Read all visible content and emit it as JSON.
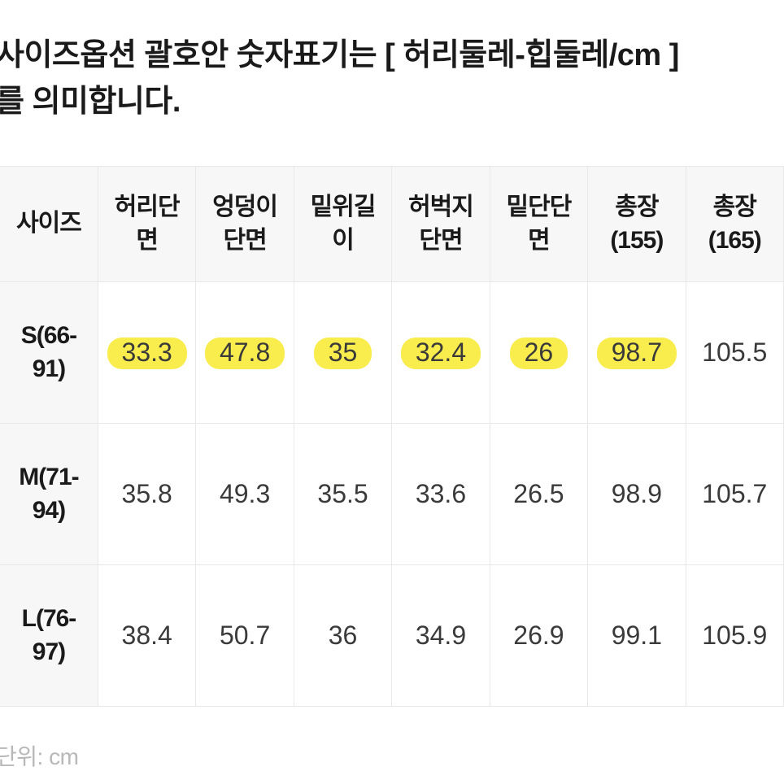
{
  "header": {
    "line1": "사이즈옵션 괄호안 숫자표기는 [ 허리둘레-힙둘레/cm ]",
    "line2": "를 의미합니다."
  },
  "table": {
    "columns": [
      "사이즈",
      "허리단면",
      "엉덩이단면",
      "밑위길이",
      "허벅지단면",
      "밑단단면",
      "총장(155)",
      "총장(165)"
    ],
    "rows": [
      {
        "label": "S(66-91)",
        "values": [
          "33.3",
          "47.8",
          "35",
          "32.4",
          "26",
          "98.7",
          "105.5"
        ],
        "highlighted": true,
        "highlight_range": [
          0,
          5
        ]
      },
      {
        "label": "M(71-94)",
        "values": [
          "35.8",
          "49.3",
          "35.5",
          "33.6",
          "26.5",
          "98.9",
          "105.7"
        ],
        "highlighted": false
      },
      {
        "label": "L(76-97)",
        "values": [
          "38.4",
          "50.7",
          "36",
          "34.9",
          "26.9",
          "99.1",
          "105.9"
        ],
        "highlighted": false
      }
    ]
  },
  "footer": {
    "unit_label": "단위: cm"
  },
  "styling": {
    "highlight_color": "#f9ed4e",
    "header_bg": "#f7f7f7",
    "border_color": "#e8e8e8",
    "text_color": "#1a1a1a",
    "cell_text_color": "#3a3a3a",
    "footer_color": "#b8b8b8",
    "header_fontsize": 38,
    "th_fontsize": 30,
    "td_fontsize": 32,
    "footer_fontsize": 28
  }
}
